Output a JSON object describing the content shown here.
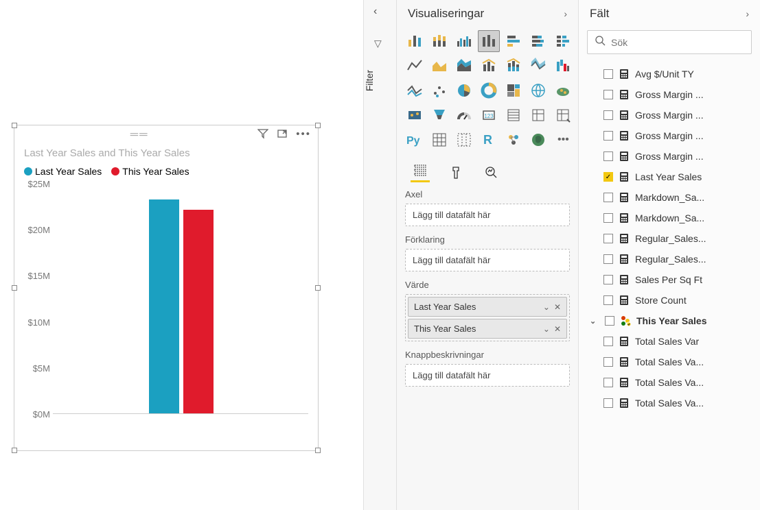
{
  "filter_tab": {
    "label": "Filter"
  },
  "viz_panel": {
    "title": "Visualiseringar",
    "wells": {
      "axis_label": "Axel",
      "axis_placeholder": "Lägg till datafält här",
      "legend_label": "Förklaring",
      "legend_placeholder": "Lägg till datafält här",
      "value_label": "Värde",
      "value_items": [
        "Last Year Sales",
        "This Year Sales"
      ],
      "tooltip_label": "Knappbeskrivningar",
      "tooltip_placeholder": "Lägg till datafält här"
    }
  },
  "fields_panel": {
    "title": "Fält",
    "search_placeholder": "Sök",
    "items": [
      {
        "label": "Avg $/Unit TY",
        "checked": false,
        "type": "calc"
      },
      {
        "label": "Gross Margin ...",
        "checked": false,
        "type": "calc"
      },
      {
        "label": "Gross Margin ...",
        "checked": false,
        "type": "calc"
      },
      {
        "label": "Gross Margin ...",
        "checked": false,
        "type": "calc"
      },
      {
        "label": "Gross Margin ...",
        "checked": false,
        "type": "calc"
      },
      {
        "label": "Last Year Sales",
        "checked": true,
        "type": "calc"
      },
      {
        "label": "Markdown_Sa...",
        "checked": false,
        "type": "calc"
      },
      {
        "label": "Markdown_Sa...",
        "checked": false,
        "type": "calc"
      },
      {
        "label": "Regular_Sales...",
        "checked": false,
        "type": "calc"
      },
      {
        "label": "Regular_Sales...",
        "checked": false,
        "type": "calc"
      },
      {
        "label": "Sales Per Sq Ft",
        "checked": false,
        "type": "calc"
      },
      {
        "label": "Store Count",
        "checked": false,
        "type": "calc"
      },
      {
        "label": "This Year Sales",
        "checked": false,
        "type": "hier",
        "bold": true,
        "expand": true
      },
      {
        "label": "Total Sales Var",
        "checked": false,
        "type": "calc"
      },
      {
        "label": "Total Sales Va...",
        "checked": false,
        "type": "calc"
      },
      {
        "label": "Total Sales Va...",
        "checked": false,
        "type": "calc"
      },
      {
        "label": "Total Sales Va...",
        "checked": false,
        "type": "calc"
      }
    ]
  },
  "chart": {
    "title": "Last Year Sales and This Year Sales",
    "legend": [
      {
        "label": "Last Year Sales",
        "color": "#1ba0c1"
      },
      {
        "label": "This Year Sales",
        "color": "#e01b2c"
      }
    ],
    "y_ticks": [
      "$0M",
      "$5M",
      "$10M",
      "$15M",
      "$20M",
      "$25M"
    ],
    "y_max": 25,
    "bars": [
      {
        "value": 23.2,
        "color": "#1ba0c1"
      },
      {
        "value": 22.1,
        "color": "#e01b2c"
      }
    ]
  }
}
